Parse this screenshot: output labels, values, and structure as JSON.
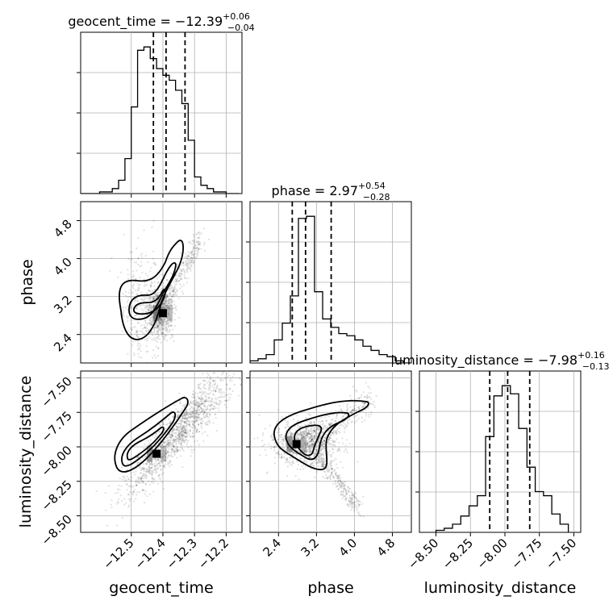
{
  "chart_data": {
    "type": "corner",
    "parameters": [
      "geocent_time",
      "phase",
      "luminosity_distance"
    ],
    "axis_labels": {
      "geocent_time": "geocent_time",
      "phase": "phase",
      "luminosity_distance": "luminosity_distance"
    },
    "titles": [
      {
        "param": "geocent_time",
        "name": "geocent_time",
        "median": "−12.39",
        "plus": "+0.06",
        "minus": "−0.04"
      },
      {
        "param": "phase",
        "name": "phase",
        "median": "2.97",
        "plus": "+0.54",
        "minus": "−0.28"
      },
      {
        "param": "luminosity_distance",
        "name": "luminosity_distance",
        "median": "−7.98",
        "plus": "+0.16",
        "minus": "−0.13"
      }
    ],
    "ranges": {
      "geocent_time": [
        -12.66,
        -12.15
      ],
      "phase": [
        1.8,
        5.2
      ],
      "luminosity_distance": [
        -8.62,
        -7.45
      ]
    },
    "ticks": {
      "geocent_time": [
        {
          "v": -12.5,
          "label": "−12.5"
        },
        {
          "v": -12.4,
          "label": "−12.4"
        },
        {
          "v": -12.3,
          "label": "−12.3"
        },
        {
          "v": -12.2,
          "label": "−12.2"
        }
      ],
      "phase": [
        {
          "v": 2.4,
          "label": "2.4"
        },
        {
          "v": 3.2,
          "label": "3.2"
        },
        {
          "v": 4.0,
          "label": "4.0"
        },
        {
          "v": 4.8,
          "label": "4.8"
        }
      ],
      "luminosity_distance": [
        {
          "v": -8.5,
          "label": "−8.50"
        },
        {
          "v": -8.25,
          "label": "−8.25"
        },
        {
          "v": -8.0,
          "label": "−8.00"
        },
        {
          "v": -7.75,
          "label": "−7.75"
        },
        {
          "v": -7.5,
          "label": "−7.50"
        }
      ]
    },
    "histograms": {
      "geocent_time": {
        "edges": [
          -12.66,
          -12.64,
          -12.62,
          -12.6,
          -12.58,
          -12.56,
          -12.54,
          -12.52,
          -12.5,
          -12.48,
          -12.46,
          -12.44,
          -12.42,
          -12.4,
          -12.38,
          -12.36,
          -12.34,
          -12.32,
          -12.3,
          -12.28,
          -12.26,
          -12.24,
          -12.22,
          -12.2,
          -12.18,
          -12.16
        ],
        "counts": [
          0,
          0,
          0,
          1,
          1,
          3,
          8,
          21,
          52,
          86,
          88,
          81,
          75,
          71,
          68,
          62,
          54,
          32,
          10,
          5,
          3,
          1,
          1,
          0,
          0
        ]
      },
      "phase": {
        "edges": [
          1.8,
          1.97,
          2.14,
          2.31,
          2.48,
          2.65,
          2.82,
          2.99,
          3.16,
          3.33,
          3.5,
          3.67,
          3.84,
          4.01,
          4.18,
          4.35,
          4.52,
          4.69,
          4.86,
          5.03,
          5.2
        ],
        "counts": [
          1,
          2,
          4,
          11,
          19,
          32,
          69,
          70,
          34,
          21,
          17,
          14,
          13,
          11,
          8,
          6,
          4,
          3,
          1,
          0
        ]
      },
      "luminosity_distance": {
        "edges": [
          -8.5,
          -8.44,
          -8.38,
          -8.32,
          -8.26,
          -8.2,
          -8.14,
          -8.08,
          -8.02,
          -7.96,
          -7.9,
          -7.84,
          -7.78,
          -7.72,
          -7.66,
          -7.6,
          -7.54
        ],
        "counts": [
          1,
          2,
          4,
          8,
          13,
          18,
          47,
          67,
          72,
          68,
          51,
          32,
          20,
          18,
          9,
          4
        ]
      }
    },
    "quantile_lines": {
      "geocent_time": [
        -12.43,
        -12.39,
        -12.33
      ],
      "phase": [
        2.69,
        2.97,
        3.51
      ],
      "luminosity_distance": [
        -8.11,
        -7.98,
        -7.82
      ]
    },
    "hist2d_peaks": {
      "phase_vs_geocent_time": [
        {
          "x": -12.4,
          "y": 2.85
        }
      ],
      "luminosity_distance_vs_geocent_time": [
        {
          "x": -12.42,
          "y": -8.05
        }
      ],
      "luminosity_distance_vs_phase": [
        {
          "x": 2.78,
          "y": -7.98
        }
      ]
    },
    "grid": true
  }
}
